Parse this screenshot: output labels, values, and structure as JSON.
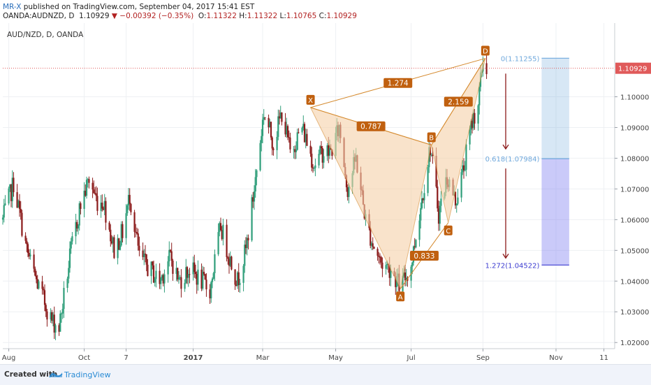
{
  "header": {
    "author": "MR-X",
    "published": " published on TradingView.com, September 04, 2017 15:41 EST",
    "symbol": "OANDA:AUDNZD, D",
    "last": "1.10929",
    "change": "−0.00392 (−0.35%)",
    "open_label": "O:",
    "open": "1.11322",
    "high_label": "H:",
    "high": "1.11322",
    "low_label": "L:",
    "low": "1.10765",
    "close_label": "C:",
    "close": "1.10929"
  },
  "footer": {
    "created": "Created with",
    "brand": "TradingView"
  },
  "colors": {
    "up": "#2f9e7a",
    "down": "#8b1a1a",
    "pattern_fill": "#f6d2a9",
    "pattern_line": "#d4882b",
    "label_bg": "#c0600f",
    "price_line": "#e05a5a",
    "last_badge": "#e05a5a",
    "target_blue": "#6fa8dc",
    "target_purple": "#7b7bf0"
  },
  "chart_data": {
    "type": "candlestick",
    "title": "AUD/NZD, D, OANDA",
    "ylim": [
      1.018,
      1.124
    ],
    "y_ticks": [
      "1.02000",
      "1.03000",
      "1.04000",
      "1.05000",
      "1.06000",
      "1.07000",
      "1.08000",
      "1.09000",
      "1.10000"
    ],
    "x_ticks": [
      {
        "label": "Aug",
        "date": "2016-08-01"
      },
      {
        "label": "Oct",
        "date": "2016-10-03"
      },
      {
        "label": "7",
        "date": "2016-11-07"
      },
      {
        "label": "2017",
        "date": "2017-01-02"
      },
      {
        "label": "Mar",
        "date": "2017-03-01"
      },
      {
        "label": "May",
        "date": "2017-05-01"
      },
      {
        "label": "Jul",
        "date": "2017-07-03"
      },
      {
        "label": "Sep",
        "date": "2017-09-01"
      },
      {
        "label": "Nov",
        "date": "2017-11-01"
      },
      {
        "label": "11",
        "date": "2017-12-11"
      }
    ],
    "date_range": [
      "2016-07-27",
      "2017-12-20"
    ],
    "last_price": {
      "value": 1.10929,
      "label": "1.10929"
    },
    "path": [
      [
        "2016-07-27",
        1.06
      ],
      [
        "2016-08-05",
        1.072
      ],
      [
        "2016-08-16",
        1.05
      ],
      [
        "2016-08-24",
        1.04
      ],
      [
        "2016-09-06",
        1.027
      ],
      [
        "2016-09-12",
        1.025
      ],
      [
        "2016-09-22",
        1.05
      ],
      [
        "2016-09-30",
        1.065
      ],
      [
        "2016-10-07",
        1.073
      ],
      [
        "2016-10-14",
        1.066
      ],
      [
        "2016-10-19",
        1.066
      ],
      [
        "2016-10-28",
        1.05
      ],
      [
        "2016-11-04",
        1.056
      ],
      [
        "2016-11-10",
        1.068
      ],
      [
        "2016-11-18",
        1.048
      ],
      [
        "2016-11-24",
        1.045
      ],
      [
        "2016-12-05",
        1.04
      ],
      [
        "2016-12-14",
        1.048
      ],
      [
        "2016-12-21",
        1.04
      ],
      [
        "2016-12-30",
        1.044
      ],
      [
        "2017-01-09",
        1.04
      ],
      [
        "2017-01-16",
        1.037
      ],
      [
        "2017-01-25",
        1.058
      ],
      [
        "2017-02-01",
        1.048
      ],
      [
        "2017-02-08",
        1.04
      ],
      [
        "2017-02-15",
        1.05
      ],
      [
        "2017-02-22",
        1.07
      ],
      [
        "2017-03-02",
        1.095
      ],
      [
        "2017-03-10",
        1.085
      ],
      [
        "2017-03-17",
        1.095
      ],
      [
        "2017-03-24",
        1.082
      ],
      [
        "2017-04-03",
        1.09
      ],
      [
        "2017-04-13",
        1.078
      ],
      [
        "2017-04-20",
        1.082
      ],
      [
        "2017-04-27",
        1.082
      ],
      [
        "2017-05-04",
        1.09
      ],
      [
        "2017-05-11",
        1.07
      ],
      [
        "2017-05-18",
        1.08
      ],
      [
        "2017-05-26",
        1.06
      ],
      [
        "2017-06-01",
        1.052
      ],
      [
        "2017-06-08",
        1.046
      ],
      [
        "2017-06-16",
        1.044
      ],
      [
        "2017-06-24",
        1.038
      ],
      [
        "2017-07-03",
        1.045
      ],
      [
        "2017-07-12",
        1.067
      ],
      [
        "2017-07-19",
        1.084
      ],
      [
        "2017-07-26",
        1.062
      ],
      [
        "2017-08-02",
        1.074
      ],
      [
        "2017-08-09",
        1.066
      ],
      [
        "2017-08-16",
        1.077
      ],
      [
        "2017-08-23",
        1.092
      ],
      [
        "2017-08-28",
        1.098
      ],
      [
        "2017-09-01",
        1.112
      ],
      [
        "2017-09-04",
        1.10929
      ]
    ],
    "pattern": {
      "points": [
        {
          "label": "X",
          "date": "2017-04-10",
          "price": 1.0965
        },
        {
          "label": "A",
          "date": "2017-06-24",
          "price": 1.0375
        },
        {
          "label": "B",
          "date": "2017-07-20",
          "price": 1.0843
        },
        {
          "label": "C",
          "date": "2017-08-03",
          "price": 1.059
        },
        {
          "label": "D",
          "date": "2017-09-03",
          "price": 1.1125
        }
      ],
      "ratios": [
        {
          "text": "1.274",
          "from": "X",
          "to": "D"
        },
        {
          "text": "0.787",
          "from": "X",
          "to": "B"
        },
        {
          "text": "2.159",
          "from": "B",
          "to": "D"
        },
        {
          "text": "0.833",
          "from": "A",
          "to": "C"
        }
      ]
    },
    "targets": {
      "date_range": [
        "2017-10-20",
        "2017-11-12"
      ],
      "levels": [
        {
          "text": "0(1.11255)",
          "value": 1.11255,
          "color": "#6fa8dc"
        },
        {
          "text": "0.618(1.07984)",
          "value": 1.07984,
          "color": "#6fa8dc"
        },
        {
          "text": "1.272(1.04522)",
          "value": 1.04522,
          "color": "#3b3bd0"
        }
      ]
    }
  }
}
